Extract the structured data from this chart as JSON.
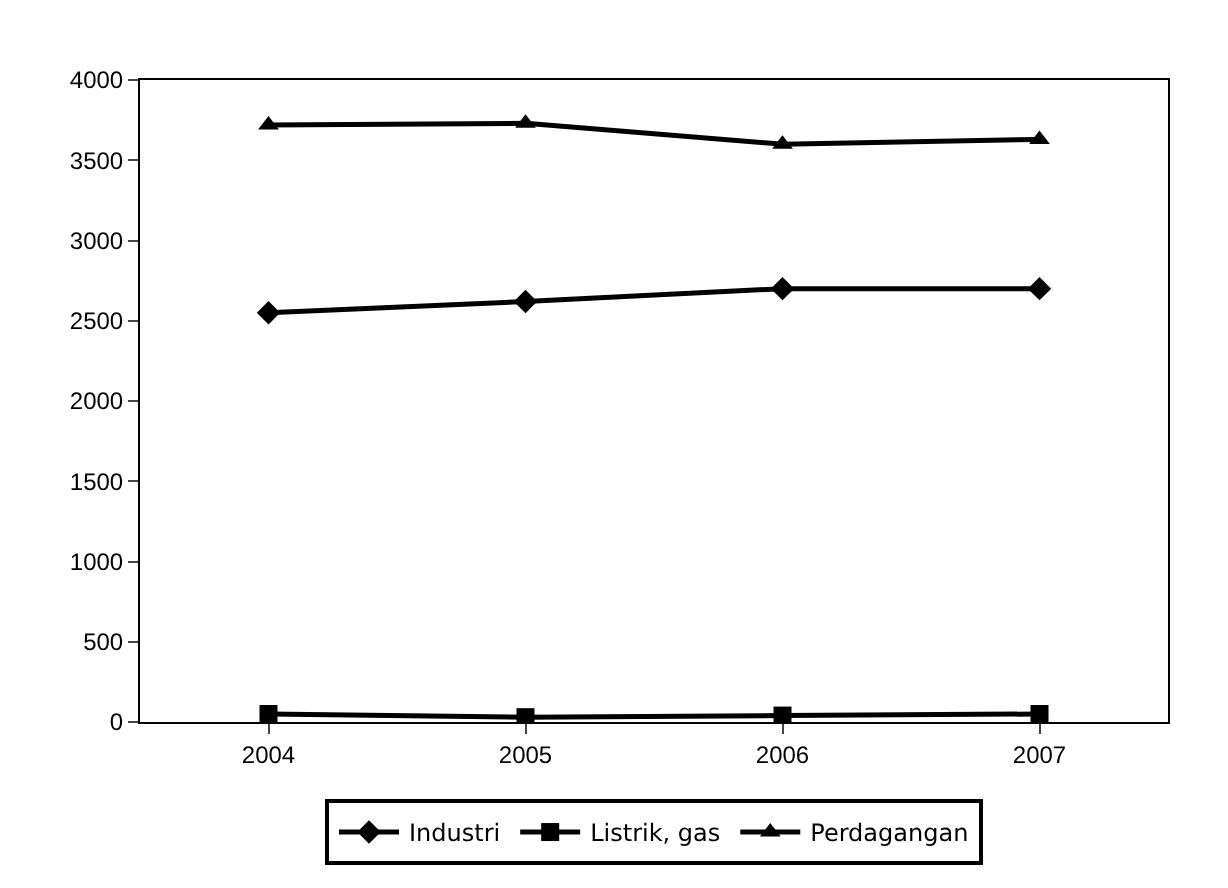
{
  "chart_data": {
    "type": "line",
    "categories": [
      "2004",
      "2005",
      "2006",
      "2007"
    ],
    "series": [
      {
        "name": "Industri",
        "color": "#000000",
        "marker": "diamond",
        "values": [
          2550,
          2620,
          2700,
          2700
        ]
      },
      {
        "name": "Listrik, gas",
        "color": "#000000",
        "marker": "square",
        "values": [
          50,
          30,
          40,
          50
        ]
      },
      {
        "name": "Perdagangan",
        "color": "#000000",
        "marker": "triangle",
        "values": [
          3720,
          3730,
          3600,
          3630
        ]
      }
    ],
    "ylim": [
      0,
      4000
    ],
    "yticks": [
      0,
      500,
      1000,
      1500,
      2000,
      2500,
      3000,
      3500,
      4000
    ],
    "legend": "bottom",
    "line_style": "solid"
  }
}
